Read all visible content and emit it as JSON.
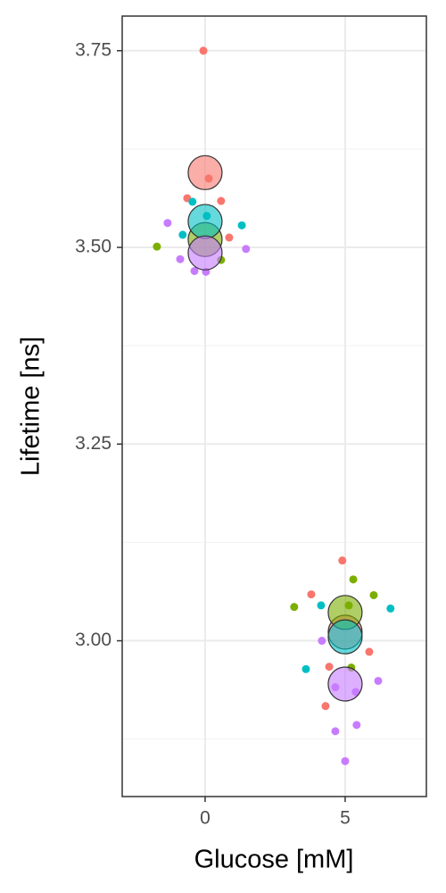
{
  "chart_data": {
    "type": "scatter",
    "x_label": "Glucose [mM]",
    "y_label": "Lifetime [ns]",
    "xlim": [
      -2.96,
      7.9
    ],
    "xticks": [
      0,
      5
    ],
    "ylim": [
      2.802,
      3.794
    ],
    "yticks": [
      {
        "value": 3,
        "label": "3.00"
      },
      3.25,
      {
        "value": 3.5,
        "label": "3.50"
      },
      3.75
    ],
    "grid": true,
    "series": [
      {
        "color": "#F8766D",
        "x": [
          -0.06,
          0.13,
          -0.64,
          0.57,
          0.86,
          4.9,
          3.79,
          5.86,
          4.43,
          4.3
        ],
        "values": [
          3.75,
          3.5875,
          3.5625,
          3.559,
          3.5125,
          3.102,
          3.059,
          2.986,
          2.967,
          2.917
        ]
      },
      {
        "color": "#7CAE00",
        "x": [
          -1.72,
          0.57,
          5.29,
          3.18,
          6.02,
          5.13,
          5.22
        ],
        "values": [
          3.501,
          3.484,
          3.078,
          3.043,
          3.058,
          3.045,
          2.966
        ]
      },
      {
        "color": "#00BFC4",
        "x": [
          -0.45,
          0.06,
          1.31,
          -0.8,
          4.14,
          6.62,
          3.6
        ],
        "values": [
          3.558,
          3.54,
          3.528,
          3.516,
          3.045,
          3.041,
          2.964
        ]
      },
      {
        "color": "#C77CFF",
        "x": [
          -1.34,
          1.46,
          -0.89,
          -0.38,
          0.03,
          4.17,
          4.65,
          6.18,
          5.38,
          4.65,
          5.41,
          5.0
        ],
        "values": [
          3.531,
          3.498,
          3.485,
          3.47,
          3.469,
          3.0,
          2.941,
          2.949,
          2.935,
          2.885,
          2.893,
          2.847
        ]
      }
    ],
    "summary": [
      {
        "color": "#F8766D",
        "x": [
          0,
          5
        ],
        "values": [
          3.595,
          3.011
        ]
      },
      {
        "color": "#7CAE00",
        "x": [
          0,
          5
        ],
        "values": [
          3.51,
          3.036
        ]
      },
      {
        "color": "#00BFC4",
        "x": [
          0,
          5
        ],
        "values": [
          3.533,
          3.005
        ]
      },
      {
        "color": "#C77CFF",
        "x": [
          0,
          5
        ],
        "values": [
          3.493,
          2.945
        ]
      }
    ]
  }
}
